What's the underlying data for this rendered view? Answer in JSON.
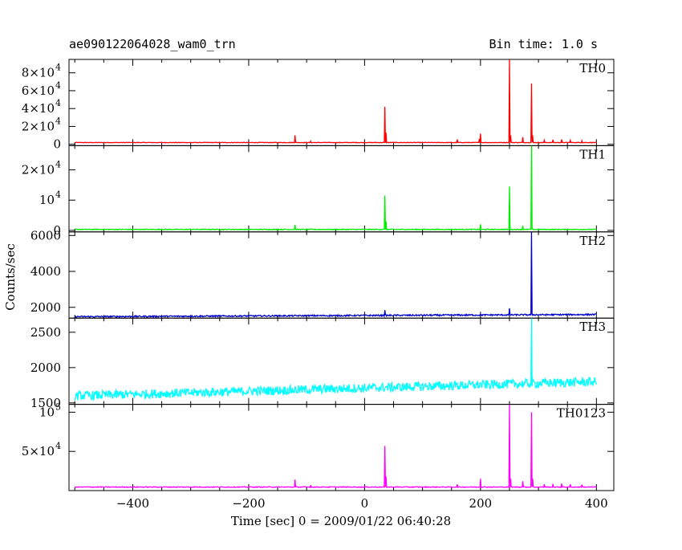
{
  "header": {
    "left_title": "ae090122064028_wam0_trn",
    "right_title": "Bin time: 1.0 s"
  },
  "axes": {
    "ylabel": "Counts/sec",
    "xlabel": "Time [sec] 0 = 2009/01/22 06:40:28",
    "x_ticks": [
      {
        "value": -400,
        "label": "−400"
      },
      {
        "value": -200,
        "label": "−200"
      },
      {
        "value": 0,
        "label": "0"
      },
      {
        "value": 200,
        "label": "200"
      },
      {
        "value": 400,
        "label": "400"
      }
    ]
  },
  "chart_data": [
    {
      "type": "line",
      "name": "TH0",
      "color": "#ff0000",
      "xlim": [
        -510,
        430
      ],
      "ylim": [
        -1500,
        95000
      ],
      "y_ticks": [
        {
          "value": 0,
          "label": "0"
        },
        {
          "value": 20000,
          "label": "2×10",
          "exp": "4"
        },
        {
          "value": 40000,
          "label": "4×10",
          "exp": "4"
        },
        {
          "value": 60000,
          "label": "6×10",
          "exp": "4"
        },
        {
          "value": 80000,
          "label": "8×10",
          "exp": "4"
        }
      ],
      "baseline": 2000,
      "noise": 300,
      "peaks": [
        {
          "x": -120,
          "y": 10000
        },
        {
          "x": -93,
          "y": 3500
        },
        {
          "x": 35,
          "y": 42000
        },
        {
          "x": 37,
          "y": 13000
        },
        {
          "x": 160,
          "y": 5500
        },
        {
          "x": 200,
          "y": 12000
        },
        {
          "x": 198,
          "y": 6000
        },
        {
          "x": 250,
          "y": 95000
        },
        {
          "x": 252,
          "y": 10000
        },
        {
          "x": 273,
          "y": 8000
        },
        {
          "x": 288,
          "y": 68000
        },
        {
          "x": 290,
          "y": 10000
        },
        {
          "x": 310,
          "y": 4500
        },
        {
          "x": 325,
          "y": 5000
        },
        {
          "x": 340,
          "y": 5500
        },
        {
          "x": 355,
          "y": 4500
        },
        {
          "x": 375,
          "y": 4000
        }
      ]
    },
    {
      "type": "line",
      "name": "TH1",
      "color": "#00ee00",
      "xlim": [
        -510,
        430
      ],
      "ylim": [
        -500,
        28000
      ],
      "y_ticks": [
        {
          "value": 0,
          "label": "0"
        },
        {
          "value": 10000,
          "label": "10",
          "exp": "4"
        },
        {
          "value": 20000,
          "label": "2×10",
          "exp": "4"
        }
      ],
      "baseline": 300,
      "noise": 150,
      "peaks": [
        {
          "x": -120,
          "y": 1800
        },
        {
          "x": 35,
          "y": 11500
        },
        {
          "x": 37,
          "y": 3000
        },
        {
          "x": 200,
          "y": 2000
        },
        {
          "x": 250,
          "y": 14500
        },
        {
          "x": 273,
          "y": 1500
        },
        {
          "x": 288,
          "y": 28000
        }
      ]
    },
    {
      "type": "line",
      "name": "TH2",
      "color": "#0000cc",
      "xlim": [
        -510,
        430
      ],
      "ylim": [
        1400,
        6200
      ],
      "y_ticks": [
        {
          "value": 2000,
          "label": "2000"
        },
        {
          "value": 4000,
          "label": "4000"
        },
        {
          "value": 6000,
          "label": "6000"
        }
      ],
      "baseline": 1480,
      "trend": 120,
      "noise": 40,
      "peaks": [
        {
          "x": 35,
          "y": 1850
        },
        {
          "x": 250,
          "y": 1950
        },
        {
          "x": 288,
          "y": 6200
        }
      ]
    },
    {
      "type": "line",
      "name": "TH3",
      "color": "#00ffff",
      "xlim": [
        -510,
        430
      ],
      "ylim": [
        1480,
        2700
      ],
      "y_ticks": [
        {
          "value": 1500,
          "label": "1500"
        },
        {
          "value": 2000,
          "label": "2000"
        },
        {
          "value": 2500,
          "label": "2500"
        }
      ],
      "baseline": 1600,
      "trend": 200,
      "noise": 65,
      "peaks": [
        {
          "x": 288,
          "y": 2700
        }
      ]
    },
    {
      "type": "line",
      "name": "TH0123",
      "color": "#ff00ff",
      "xlim": [
        -510,
        430
      ],
      "ylim": [
        0,
        110000
      ],
      "y_ticks": [
        {
          "value": 50000,
          "label": "5×10",
          "exp": "4"
        },
        {
          "value": 100000,
          "label": "10",
          "exp": "5"
        }
      ],
      "baseline": 4500,
      "noise": 500,
      "peaks": [
        {
          "x": -120,
          "y": 14000
        },
        {
          "x": -93,
          "y": 7000
        },
        {
          "x": 35,
          "y": 57000
        },
        {
          "x": 37,
          "y": 18000
        },
        {
          "x": 160,
          "y": 8000
        },
        {
          "x": 200,
          "y": 15000
        },
        {
          "x": 250,
          "y": 110000
        },
        {
          "x": 252,
          "y": 15000
        },
        {
          "x": 273,
          "y": 12000
        },
        {
          "x": 288,
          "y": 100000
        },
        {
          "x": 290,
          "y": 15000
        },
        {
          "x": 310,
          "y": 8000
        },
        {
          "x": 325,
          "y": 8500
        },
        {
          "x": 340,
          "y": 9000
        },
        {
          "x": 355,
          "y": 8000
        },
        {
          "x": 375,
          "y": 7500
        }
      ]
    }
  ]
}
